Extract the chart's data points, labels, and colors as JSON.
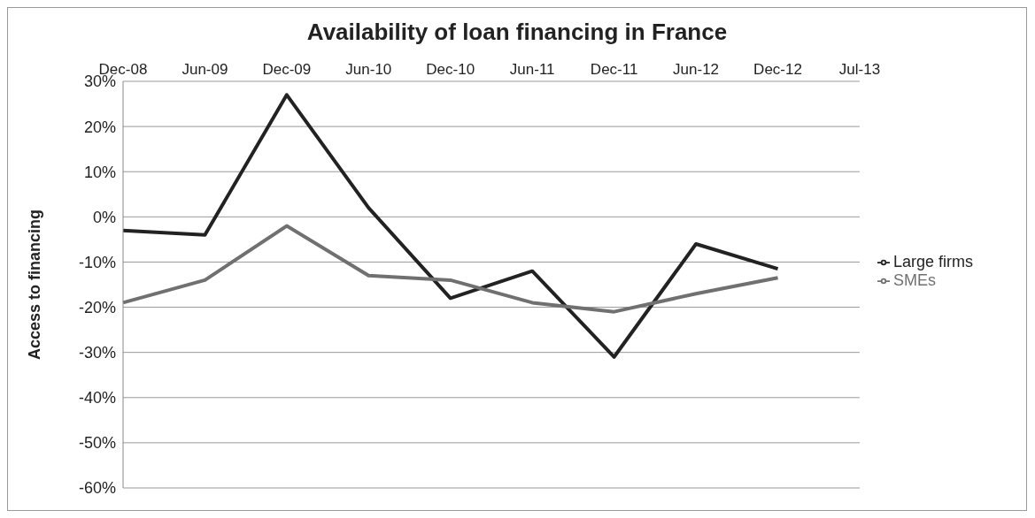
{
  "chart_data": {
    "type": "line",
    "title": "Availability of loan financing in France",
    "ylabel": "Access to financing",
    "categories": [
      "Dec-08",
      "Jun-09",
      "Dec-09",
      "Jun-10",
      "Dec-10",
      "Jun-11",
      "Dec-11",
      "Jun-12",
      "Dec-12",
      "Jul-13"
    ],
    "series": [
      {
        "name": "Large firms",
        "color": "#222222",
        "values": [
          -3,
          -4,
          27,
          2,
          -18,
          -12,
          -31,
          -6,
          -11.5,
          null
        ]
      },
      {
        "name": "SMEs",
        "color": "#707070",
        "values": [
          -19,
          -14,
          -2,
          -13,
          -14,
          -19,
          -21,
          -17,
          -13.5,
          null
        ]
      }
    ],
    "ylim": [
      -60,
      30
    ],
    "yticks": [
      {
        "value": -60,
        "label": "-60%"
      },
      {
        "value": -50,
        "label": "-50%"
      },
      {
        "value": -40,
        "label": "-40%"
      },
      {
        "value": -30,
        "label": "-30%"
      },
      {
        "value": -20,
        "label": "-20%"
      },
      {
        "value": -10,
        "label": "-10%"
      },
      {
        "value": 0,
        "label": "0%"
      },
      {
        "value": 10,
        "label": "10%"
      },
      {
        "value": 20,
        "label": "20%"
      },
      {
        "value": 30,
        "label": "30%"
      }
    ],
    "grid": "y",
    "legend": "right",
    "marker": "none",
    "line_style": "solid"
  }
}
